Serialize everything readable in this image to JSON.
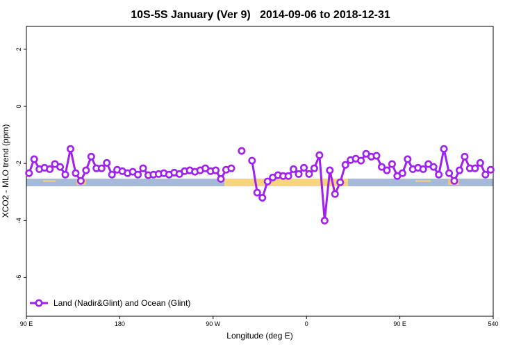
{
  "chart_data": {
    "type": "line",
    "title": "10S-5S January (Ver 9)   2014-09-06 to 2018-12-31",
    "xlabel": "Longitude (deg E)",
    "ylabel": "XCO2 - MLO trend (ppm)",
    "x": [
      92.5,
      97.5,
      102.5,
      107.5,
      112.5,
      117.5,
      122.5,
      127.5,
      132.5,
      137.5,
      142.5,
      147.5,
      152.5,
      157.5,
      162.5,
      167.5,
      172.5,
      177.5,
      182.5,
      187.5,
      192.5,
      197.5,
      202.5,
      207.5,
      212.5,
      217.5,
      222.5,
      227.5,
      232.5,
      237.5,
      242.5,
      247.5,
      252.5,
      257.5,
      262.5,
      267.5,
      272.5,
      277.5,
      282.5,
      287.5,
      292.5,
      297.5,
      302.5,
      307.5,
      312.5,
      317.5,
      322.5,
      327.5,
      332.5,
      337.5,
      342.5,
      347.5,
      352.5,
      357.5,
      362.5,
      367.5,
      372.5,
      377.5,
      382.5,
      387.5,
      392.5,
      397.5,
      402.5,
      407.5,
      412.5,
      417.5,
      422.5,
      427.5,
      432.5,
      437.5,
      442.5,
      447.5,
      452.5,
      457.5,
      462.5,
      467.5,
      472.5,
      477.5,
      482.5,
      487.5,
      492.5,
      497.5,
      502.5,
      507.5,
      512.5,
      517.5,
      522.5,
      527.5,
      532.5,
      537.5
    ],
    "series": [
      {
        "name": "Land (Nadir&Glint) and Ocean (Glint)",
        "color": "#a020f0",
        "values": [
          -2.34,
          -1.85,
          -2.2,
          -2.15,
          -2.2,
          -2.02,
          -2.12,
          -2.39,
          -1.49,
          -2.34,
          -2.61,
          -2.24,
          -1.76,
          -2.17,
          -2.17,
          -1.98,
          -2.39,
          -2.22,
          -2.27,
          -2.34,
          -2.29,
          -2.39,
          -2.17,
          -2.41,
          -2.39,
          -2.37,
          -2.34,
          -2.39,
          -2.32,
          -2.37,
          -2.27,
          -2.24,
          -2.29,
          -2.24,
          -2.17,
          -2.27,
          -2.24,
          -2.54,
          -2.22,
          -2.17,
          null,
          -1.56,
          null,
          -1.9,
          -3.02,
          -3.2,
          -2.63,
          -2.49,
          -2.41,
          -2.44,
          -2.44,
          -2.2,
          -2.37,
          -2.15,
          -2.37,
          -2.17,
          -1.71,
          -4.0,
          -2.24,
          -3.07,
          -2.66,
          -2.05,
          -1.88,
          -1.83,
          -1.9,
          -1.66,
          -1.76,
          -1.73,
          -2.12,
          -2.24,
          -2.02,
          -2.44,
          -2.34,
          -1.85,
          -2.2,
          -2.15,
          -2.2,
          -2.02,
          -2.12,
          -2.39,
          -1.49,
          -2.34,
          -2.61,
          -2.24,
          -1.76,
          -2.17,
          -2.17,
          -1.98,
          -2.39,
          -2.22
        ]
      }
    ],
    "xlim": [
      90,
      540
    ],
    "xticks": [
      {
        "value": 90,
        "label": "90 E"
      },
      180,
      {
        "value": 270,
        "label": "90 W"
      },
      {
        "value": 360,
        "label": "0"
      },
      {
        "value": 450,
        "label": "90 E"
      },
      540
    ],
    "ylim": [
      -7.35,
      2.8
    ],
    "yticks": [
      2,
      0,
      -2,
      -4,
      -6
    ],
    "legend": "lower left"
  }
}
